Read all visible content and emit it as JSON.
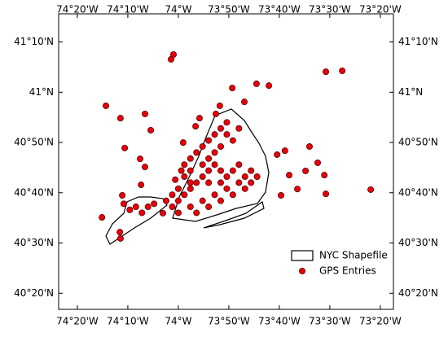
{
  "chart_data": {
    "type": "scatter",
    "xlim": [
      -74.395,
      -73.29
    ],
    "ylim": [
      40.28,
      41.26
    ],
    "xticks": [
      {
        "value": -74.3333,
        "label": "74°20'W"
      },
      {
        "value": -74.1667,
        "label": "74°10'W"
      },
      {
        "value": -74,
        "label": "74°W"
      },
      {
        "value": -73.8333,
        "label": "73°50'W"
      },
      {
        "value": -73.6667,
        "label": "73°40'W"
      },
      {
        "value": -73.5,
        "label": "73°30'W"
      },
      {
        "value": -73.3333,
        "label": "73°20'W"
      }
    ],
    "yticks": [
      {
        "value": 41.1667,
        "label": "41°10'N"
      },
      {
        "value": 41,
        "label": "41°N"
      },
      {
        "value": 40.8333,
        "label": "40°50'N"
      },
      {
        "value": 40.6667,
        "label": "40°40'N"
      },
      {
        "value": 40.5,
        "label": "40°30'N"
      },
      {
        "value": 40.3333,
        "label": "40°20'N"
      }
    ],
    "legend": "lower right",
    "shapefile": {
      "name": "NYC Shapefile"
    },
    "series": [
      {
        "name": "GPS Entries",
        "color": "#e8000b",
        "x": [
          -74.016,
          -74.024,
          -74.239,
          -74.191,
          -74.11,
          -74.091,
          -74.177,
          -74.126,
          -74.11,
          -74.123,
          -74.185,
          -74.252,
          -74.193,
          -74.191,
          -74.051,
          -73.742,
          -73.701,
          -73.822,
          -73.513,
          -73.459,
          -73.567,
          -73.54,
          -73.58,
          -73.518,
          -73.513,
          -73.365,
          -73.634,
          -73.674,
          -73.648,
          -73.607,
          -73.661,
          -73.782,
          -73.863,
          -73.876,
          -73.93,
          -73.943,
          -73.984,
          -74.02,
          -74.0,
          -73.98,
          -73.96,
          -73.94,
          -73.92,
          -73.9,
          -73.88,
          -73.86,
          -73.84,
          -73.82,
          -73.8,
          -73.78,
          -73.76,
          -73.8,
          -73.84,
          -73.88,
          -73.92,
          -73.96,
          -74.0,
          -73.94,
          -73.9,
          -73.86,
          -73.82,
          -73.78,
          -73.96,
          -73.98,
          -73.96,
          -73.94,
          -73.92,
          -73.9,
          -73.88,
          -73.86,
          -73.84,
          -73.82,
          -73.86,
          -73.88,
          -73.9,
          -73.92,
          -73.96,
          -74.0,
          -74.02,
          -74.04,
          -73.98,
          -74.01,
          -73.99,
          -73.9,
          -73.86,
          -73.76,
          -73.74,
          -74.14,
          -74.18,
          -74.16,
          -74.1,
          -74.08,
          -74.12,
          -73.84,
          -73.8
        ],
        "y": [
          41.125,
          41.109,
          40.955,
          40.914,
          40.928,
          40.874,
          40.815,
          40.779,
          40.752,
          40.693,
          40.658,
          40.585,
          40.536,
          40.515,
          40.599,
          41.028,
          41.022,
          41.014,
          41.068,
          41.071,
          40.82,
          40.766,
          40.739,
          40.725,
          40.663,
          40.677,
          40.725,
          40.793,
          40.806,
          40.679,
          40.658,
          40.968,
          40.955,
          40.928,
          40.914,
          40.887,
          40.833,
          40.62,
          40.64,
          40.66,
          40.68,
          40.7,
          40.72,
          40.74,
          40.76,
          40.7,
          40.72,
          40.74,
          40.7,
          40.72,
          40.74,
          40.76,
          40.68,
          40.66,
          40.64,
          40.62,
          40.6,
          40.6,
          40.62,
          40.64,
          40.66,
          40.68,
          40.74,
          40.76,
          40.78,
          40.8,
          40.82,
          40.84,
          40.86,
          40.88,
          40.86,
          40.84,
          40.82,
          40.8,
          40.78,
          40.76,
          40.7,
          40.68,
          40.66,
          40.64,
          40.72,
          40.71,
          40.74,
          40.7,
          40.74,
          40.7,
          40.72,
          40.62,
          40.63,
          40.61,
          40.62,
          40.63,
          40.6,
          40.9,
          40.88
        ]
      }
    ]
  }
}
